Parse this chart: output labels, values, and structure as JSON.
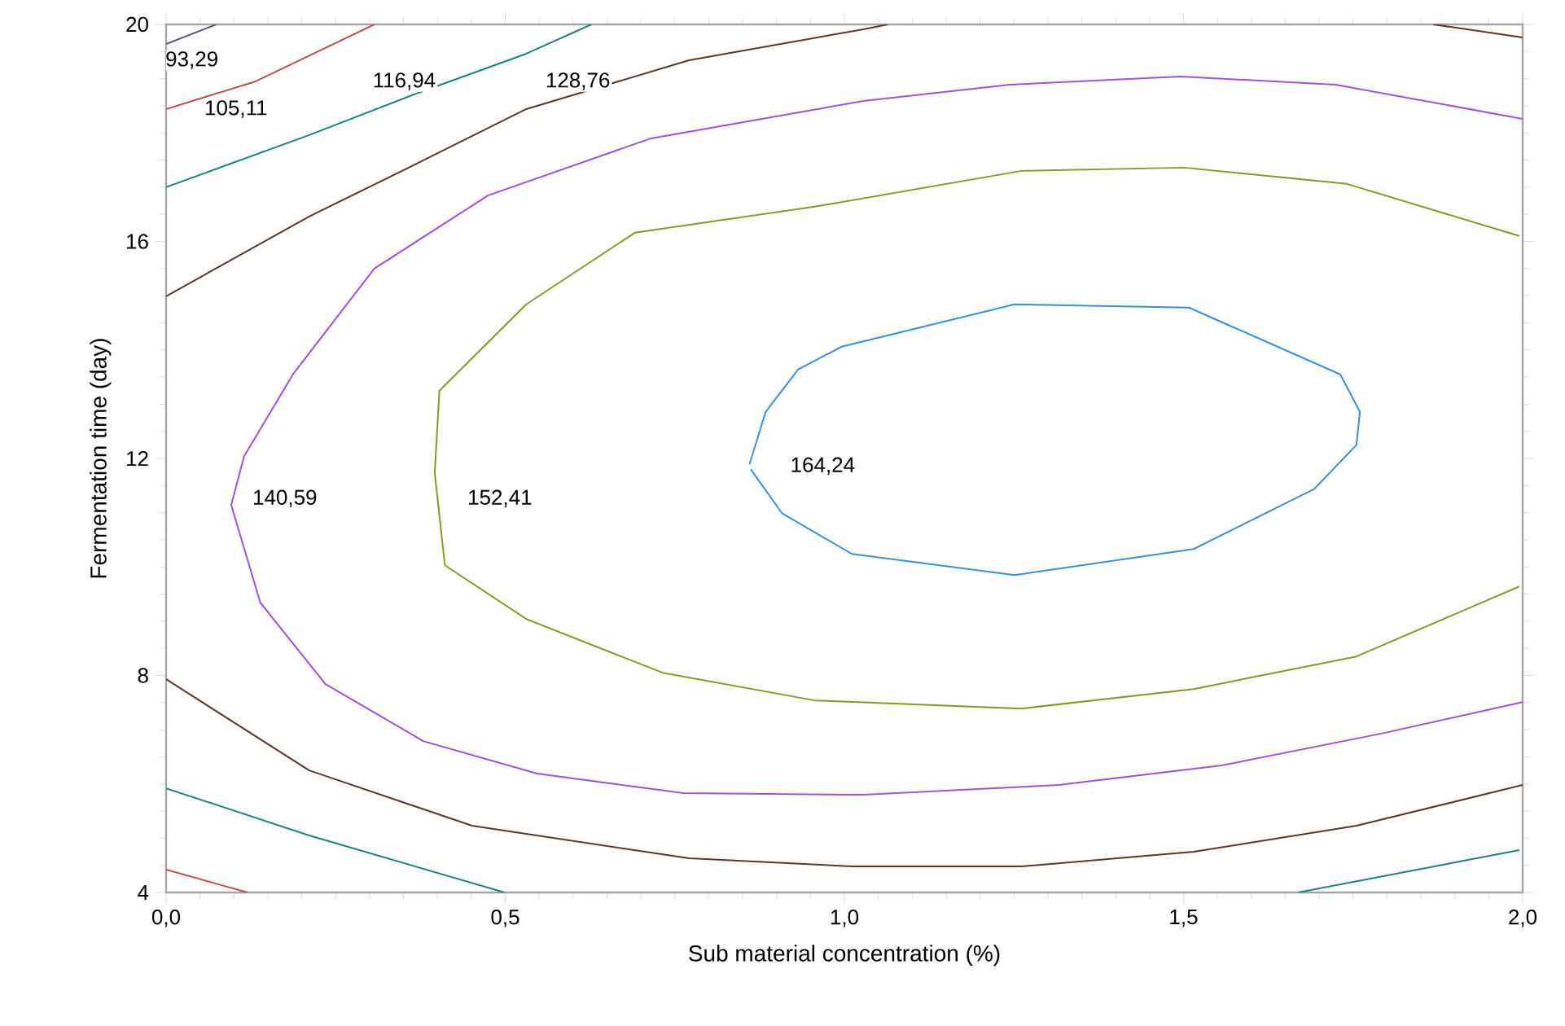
{
  "chart_data": {
    "type": "line",
    "xlabel": "Sub material concentration (%)",
    "ylabel": "Fermentation time (day)",
    "xlim": [
      0,
      2
    ],
    "ylim": [
      4,
      20
    ],
    "xticks": [
      {
        "value": 0,
        "label": "0,0"
      },
      {
        "value": 0.5,
        "label": "0,5"
      },
      {
        "value": 1,
        "label": "1,0"
      },
      {
        "value": 1.5,
        "label": "1,5"
      },
      {
        "value": 2,
        "label": "2,0"
      }
    ],
    "yticks": [
      4,
      8,
      12,
      16,
      20
    ],
    "grid": false,
    "marker": "none",
    "line_style": "solid",
    "series": [
      {
        "color": "#4a5a7a",
        "x": [
          0,
          0.074
        ],
        "values": [
          19.64,
          20
        ]
      },
      {
        "color": "#c05050",
        "x": [
          0,
          0.132,
          0.307
        ],
        "values": [
          18.44,
          18.95,
          20
        ]
      },
      {
        "color": "#c05050",
        "x": [
          0,
          0.12
        ],
        "values": [
          4.42,
          4.0
        ]
      },
      {
        "color": "#208080",
        "x": [
          0,
          0.211,
          0.372,
          0.531,
          0.627
        ],
        "values": [
          17.0,
          17.96,
          18.74,
          19.46,
          20
        ]
      },
      {
        "color": "#208080",
        "x": [
          0,
          0.211,
          0.499
        ],
        "values": [
          5.92,
          5.05,
          4.0
        ]
      },
      {
        "color": "#208080",
        "x": [
          1.669,
          1.995
        ],
        "values": [
          4.0,
          4.78
        ]
      },
      {
        "color": "#5a3a2a",
        "x": [
          0,
          0.211,
          0.372,
          0.531,
          0.771,
          1.028,
          1.064
        ],
        "values": [
          14.99,
          16.46,
          17.45,
          18.44,
          19.34,
          19.91,
          20
        ]
      },
      {
        "color": "#5a3a2a",
        "x": [
          1.868,
          2.0
        ],
        "values": [
          20,
          19.76
        ]
      },
      {
        "color": "#5a3a2a",
        "x": [
          0,
          0.211,
          0.451,
          0.771,
          1.011,
          1.261,
          1.515,
          1.755,
          2.0
        ],
        "values": [
          7.93,
          6.25,
          5.23,
          4.63,
          4.48,
          4.48,
          4.75,
          5.23,
          5.98
        ]
      },
      {
        "color": "#a050e0",
        "x": [
          2.0,
          1.724,
          1.496,
          1.244,
          1.028,
          0.715,
          0.475,
          0.307,
          0.187,
          0.115,
          0.096,
          0.139,
          0.235,
          0.379,
          0.547,
          0.763,
          1.028,
          1.316,
          1.556,
          1.796,
          2.0
        ],
        "values": [
          18.26,
          18.89,
          19.04,
          18.89,
          18.59,
          17.9,
          16.85,
          15.5,
          13.55,
          12.04,
          11.14,
          9.34,
          7.84,
          6.79,
          6.19,
          5.83,
          5.8,
          5.98,
          6.34,
          6.94,
          7.51
        ]
      },
      {
        "color": "#8a9a20",
        "x": [
          1.995,
          1.741,
          1.501,
          1.261,
          0.956,
          0.691,
          0.531,
          0.403,
          0.396,
          0.411,
          0.531,
          0.732,
          0.956,
          1.261,
          1.515,
          1.755,
          1.995
        ],
        "values": [
          16.1,
          17.06,
          17.36,
          17.3,
          16.64,
          16.16,
          14.84,
          13.25,
          11.74,
          10.03,
          9.04,
          8.05,
          7.54,
          7.39,
          7.75,
          8.35,
          9.64
        ]
      },
      {
        "color": "#3a90e0",
        "x": [
          0.86,
          0.884,
          0.932,
          0.996,
          1.251,
          1.508,
          1.731,
          1.76,
          1.755,
          1.693,
          1.515,
          1.251,
          1.011,
          0.908,
          0.862
        ],
        "values": [
          11.89,
          12.86,
          13.64,
          14.06,
          14.84,
          14.78,
          13.55,
          12.86,
          12.25,
          11.44,
          10.33,
          9.85,
          10.24,
          10.99,
          11.8
        ]
      }
    ],
    "annotations": [
      {
        "text": "93,29",
        "x": 0.038,
        "y": 19.34
      },
      {
        "text": "105,11",
        "x": 0.103,
        "y": 18.44
      },
      {
        "text": "116,94",
        "x": 0.351,
        "y": 18.95
      },
      {
        "text": "128,76",
        "x": 0.607,
        "y": 18.95
      },
      {
        "text": "140,59",
        "x": 0.175,
        "y": 11.26
      },
      {
        "text": "152,41",
        "x": 0.492,
        "y": 11.26
      },
      {
        "text": "164,24",
        "x": 0.968,
        "y": 11.86
      }
    ]
  }
}
